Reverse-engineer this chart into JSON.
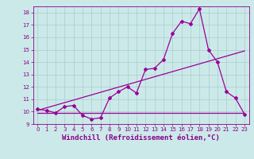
{
  "xlabel": "Windchill (Refroidissement éolien,°C)",
  "bg_color": "#cce9e9",
  "grid_color": "#aacccc",
  "line_color": "#990099",
  "xlim": [
    -0.5,
    23.5
  ],
  "ylim": [
    9.0,
    18.5
  ],
  "xticks": [
    0,
    1,
    2,
    3,
    4,
    5,
    6,
    7,
    8,
    9,
    10,
    11,
    12,
    13,
    14,
    15,
    16,
    17,
    18,
    19,
    20,
    21,
    22,
    23
  ],
  "yticks": [
    9,
    10,
    11,
    12,
    13,
    14,
    15,
    16,
    17,
    18
  ],
  "line1_x": [
    0,
    1,
    2,
    3,
    4,
    5,
    6,
    7,
    8,
    9,
    10,
    11,
    12,
    13,
    14,
    15,
    16,
    17,
    18,
    19,
    20,
    21,
    22,
    23
  ],
  "line1_y": [
    10.2,
    10.1,
    9.9,
    10.4,
    10.5,
    9.7,
    9.4,
    9.5,
    11.1,
    11.6,
    12.0,
    11.5,
    13.4,
    13.5,
    14.2,
    16.3,
    17.3,
    17.1,
    18.3,
    15.0,
    14.0,
    11.6,
    11.1,
    9.8
  ],
  "line2_x": [
    0,
    23
  ],
  "line2_y": [
    10.1,
    14.9
  ],
  "line3_x": [
    0,
    23
  ],
  "line3_y": [
    9.9,
    9.9
  ],
  "marker": "D",
  "markersize": 2.0,
  "linewidth": 0.9,
  "tick_fontsize": 5.0,
  "xlabel_fontsize": 6.5,
  "label_color": "#880088"
}
